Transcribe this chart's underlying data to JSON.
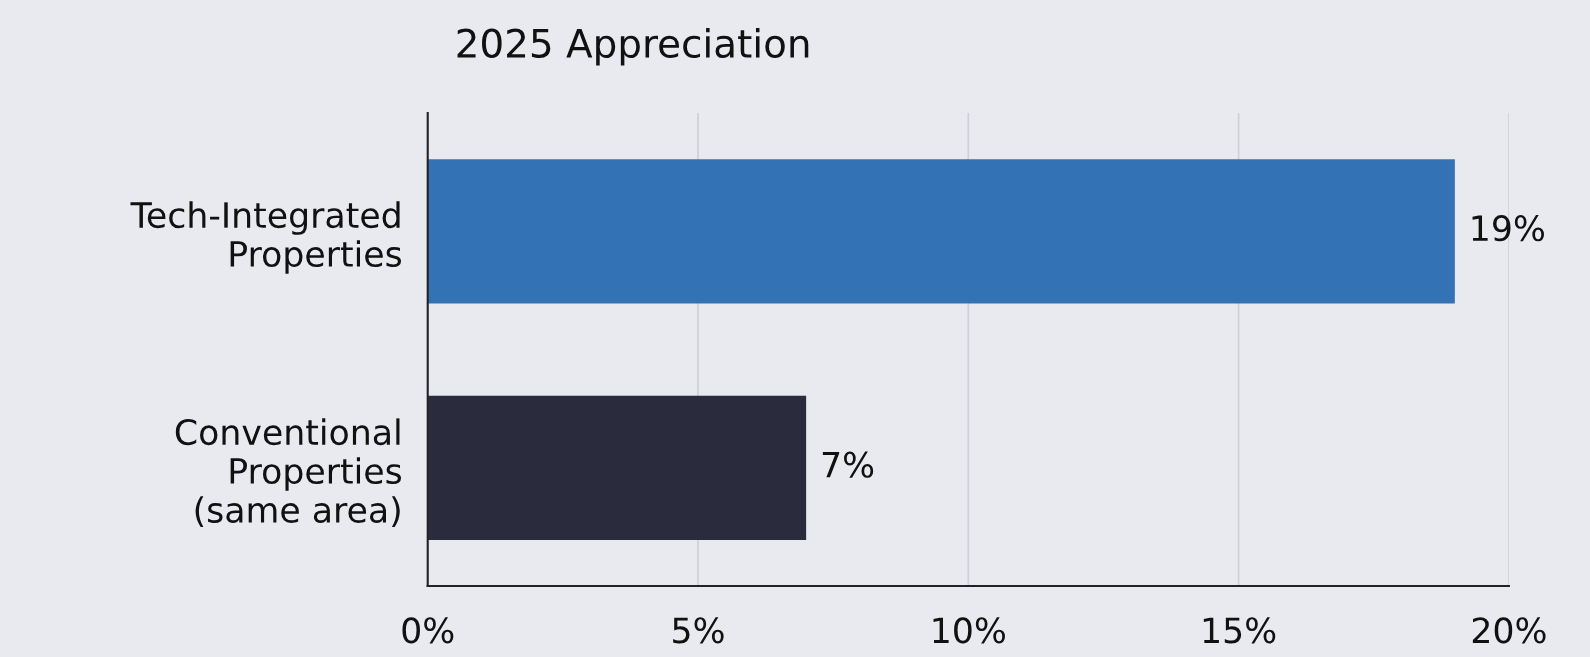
{
  "chart_data": {
    "type": "bar",
    "orientation": "horizontal",
    "title": "2025 Appreciation",
    "categories": [
      "Tech-Integrated\nProperties",
      "Conventional\nProperties\n(same area)"
    ],
    "values": [
      19,
      7
    ],
    "colors": [
      "#3372b4",
      "#2b2b3e"
    ],
    "xlim": [
      0,
      20
    ],
    "xticks": [
      {
        "value": 0,
        "label": "0%"
      },
      {
        "value": 5,
        "label": "5%"
      },
      {
        "value": 10,
        "label": "10%"
      },
      {
        "value": 15,
        "label": "15%"
      },
      {
        "value": 20,
        "label": "20%"
      }
    ],
    "value_labels": [
      "19%",
      "7%"
    ],
    "grid": "x"
  }
}
